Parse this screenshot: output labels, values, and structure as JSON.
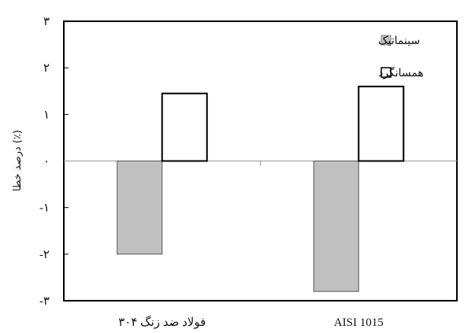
{
  "chart_data": {
    "type": "bar",
    "categories": [
      "فولاد ضد زنگ ۳۰۴",
      "AISI 1015"
    ],
    "series": [
      {
        "name": "سینماتیک",
        "values": [
          -2.0,
          -2.8
        ],
        "color": "#c0c0c0"
      },
      {
        "name": "همسانگرد",
        "values": [
          1.45,
          1.6
        ],
        "color": "#ffffff"
      }
    ],
    "ylabel": "درصد خطا (٪)",
    "ylim": [
      -3,
      3
    ],
    "y_ticks": [
      {
        "value": 3,
        "label": "۳"
      },
      {
        "value": 2,
        "label": "۲"
      },
      {
        "value": 1,
        "label": "۱"
      },
      {
        "value": 0,
        "label": "۰"
      },
      {
        "value": -1,
        "label": "-۱"
      },
      {
        "value": -2,
        "label": "-۲"
      },
      {
        "value": -3,
        "label": "-۳"
      }
    ],
    "legend_position": "top-right",
    "grid": false
  }
}
